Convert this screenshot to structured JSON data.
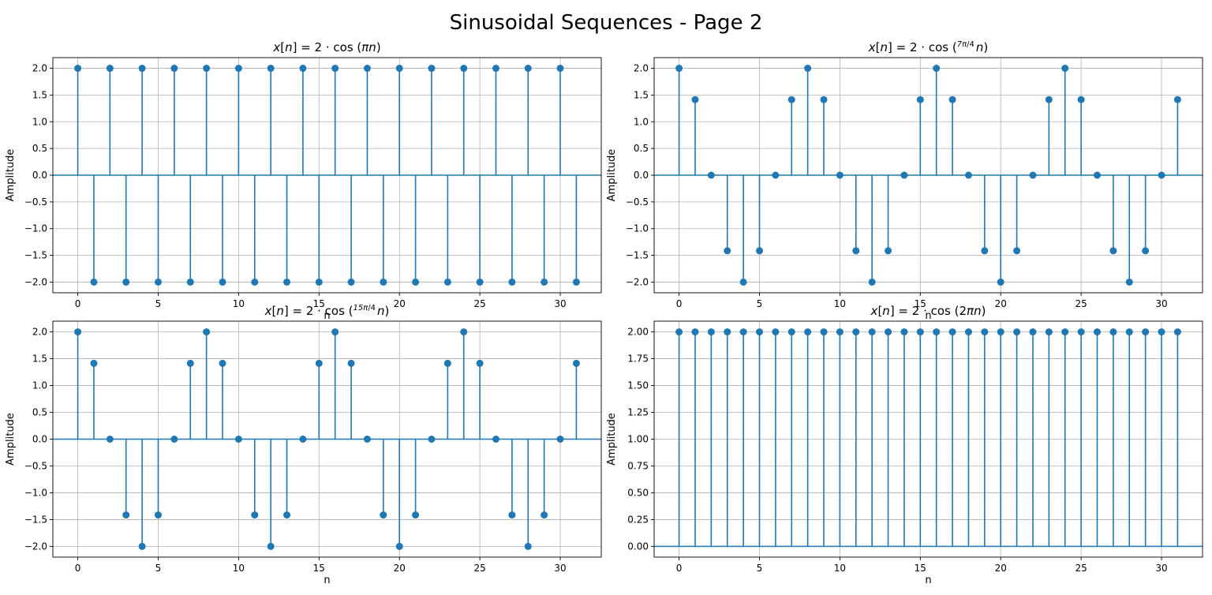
{
  "figure": {
    "title": "Sinusoidal Sequences - Page 2",
    "colors": {
      "stem": "#1f77b4",
      "grid": "#b0b0b0",
      "axes": "#000000",
      "background": "#ffffff"
    }
  },
  "chart_data": [
    {
      "type": "stem",
      "title": "x[n] = 2 · cos (πn)",
      "title_parts": [
        "x",
        "[",
        "n",
        "] = 2 · cos (",
        "π",
        "n",
        ")"
      ],
      "xlabel": "n",
      "ylabel": "Amplitude",
      "xlim": [
        -1.55,
        32.55
      ],
      "ylim": [
        -2.2,
        2.2
      ],
      "xticks": [
        0,
        5,
        10,
        15,
        20,
        25,
        30
      ],
      "yticks": [
        -2.0,
        -1.5,
        -1.0,
        -0.5,
        0.0,
        0.5,
        1.0,
        1.5,
        2.0
      ],
      "ytick_labels": [
        "−2.0",
        "−1.5",
        "−1.0",
        "−0.5",
        "0.0",
        "0.5",
        "1.0",
        "1.5",
        "2.0"
      ],
      "grid": true,
      "baseline": 0,
      "x": [
        0,
        1,
        2,
        3,
        4,
        5,
        6,
        7,
        8,
        9,
        10,
        11,
        12,
        13,
        14,
        15,
        16,
        17,
        18,
        19,
        20,
        21,
        22,
        23,
        24,
        25,
        26,
        27,
        28,
        29,
        30,
        31
      ],
      "values": [
        2,
        -2,
        2,
        -2,
        2,
        -2,
        2,
        -2,
        2,
        -2,
        2,
        -2,
        2,
        -2,
        2,
        -2,
        2,
        -2,
        2,
        -2,
        2,
        -2,
        2,
        -2,
        2,
        -2,
        2,
        -2,
        2,
        -2,
        2,
        -2
      ]
    },
    {
      "type": "stem",
      "title": "x[n] = 2 · cos (7π/4 n)",
      "title_parts": [
        "x",
        "[",
        "n",
        "] = 2 · cos (",
        "7π",
        "4",
        "n",
        ")"
      ],
      "xlabel": "n",
      "ylabel": "Amplitude",
      "xlim": [
        -1.55,
        32.55
      ],
      "ylim": [
        -2.2,
        2.2
      ],
      "xticks": [
        0,
        5,
        10,
        15,
        20,
        25,
        30
      ],
      "yticks": [
        -2.0,
        -1.5,
        -1.0,
        -0.5,
        0.0,
        0.5,
        1.0,
        1.5,
        2.0
      ],
      "ytick_labels": [
        "−2.0",
        "−1.5",
        "−1.0",
        "−0.5",
        "0.0",
        "0.5",
        "1.0",
        "1.5",
        "2.0"
      ],
      "grid": true,
      "baseline": 0,
      "x": [
        0,
        1,
        2,
        3,
        4,
        5,
        6,
        7,
        8,
        9,
        10,
        11,
        12,
        13,
        14,
        15,
        16,
        17,
        18,
        19,
        20,
        21,
        22,
        23,
        24,
        25,
        26,
        27,
        28,
        29,
        30,
        31
      ],
      "values": [
        2,
        1.414,
        0,
        -1.414,
        -2,
        -1.414,
        0,
        1.414,
        2,
        1.414,
        0,
        -1.414,
        -2,
        -1.414,
        0,
        1.414,
        2,
        1.414,
        0,
        -1.414,
        -2,
        -1.414,
        0,
        1.414,
        2,
        1.414,
        0,
        -1.414,
        -2,
        -1.414,
        0,
        1.414
      ]
    },
    {
      "type": "stem",
      "title": "x[n] = 2 · cos (15π/4 n)",
      "title_parts": [
        "x",
        "[",
        "n",
        "] = 2 · cos (",
        "15π",
        "4",
        "n",
        ")"
      ],
      "xlabel": "n",
      "ylabel": "Amplitude",
      "xlim": [
        -1.55,
        32.55
      ],
      "ylim": [
        -2.2,
        2.2
      ],
      "xticks": [
        0,
        5,
        10,
        15,
        20,
        25,
        30
      ],
      "yticks": [
        -2.0,
        -1.5,
        -1.0,
        -0.5,
        0.0,
        0.5,
        1.0,
        1.5,
        2.0
      ],
      "ytick_labels": [
        "−2.0",
        "−1.5",
        "−1.0",
        "−0.5",
        "0.0",
        "0.5",
        "1.0",
        "1.5",
        "2.0"
      ],
      "grid": true,
      "baseline": 0,
      "x": [
        0,
        1,
        2,
        3,
        4,
        5,
        6,
        7,
        8,
        9,
        10,
        11,
        12,
        13,
        14,
        15,
        16,
        17,
        18,
        19,
        20,
        21,
        22,
        23,
        24,
        25,
        26,
        27,
        28,
        29,
        30,
        31
      ],
      "values": [
        2,
        1.414,
        0,
        -1.414,
        -2,
        -1.414,
        0,
        1.414,
        2,
        1.414,
        0,
        -1.414,
        -2,
        -1.414,
        0,
        1.414,
        2,
        1.414,
        0,
        -1.414,
        -2,
        -1.414,
        0,
        1.414,
        2,
        1.414,
        0,
        -1.414,
        -2,
        -1.414,
        0,
        1.414
      ]
    },
    {
      "type": "stem",
      "title": "x[n] = 2 · cos (2πn)",
      "title_parts": [
        "x",
        "[",
        "n",
        "] = 2 · cos (2",
        "π",
        "n",
        ")"
      ],
      "xlabel": "n",
      "ylabel": "Amplitude",
      "xlim": [
        -1.55,
        32.55
      ],
      "ylim": [
        -0.1,
        2.1
      ],
      "xticks": [
        0,
        5,
        10,
        15,
        20,
        25,
        30
      ],
      "yticks": [
        0.0,
        0.25,
        0.5,
        0.75,
        1.0,
        1.25,
        1.5,
        1.75,
        2.0
      ],
      "ytick_labels": [
        "0.00",
        "0.25",
        "0.50",
        "0.75",
        "1.00",
        "1.25",
        "1.50",
        "1.75",
        "2.00"
      ],
      "grid": true,
      "baseline": 0,
      "x": [
        0,
        1,
        2,
        3,
        4,
        5,
        6,
        7,
        8,
        9,
        10,
        11,
        12,
        13,
        14,
        15,
        16,
        17,
        18,
        19,
        20,
        21,
        22,
        23,
        24,
        25,
        26,
        27,
        28,
        29,
        30,
        31
      ],
      "values": [
        2,
        2,
        2,
        2,
        2,
        2,
        2,
        2,
        2,
        2,
        2,
        2,
        2,
        2,
        2,
        2,
        2,
        2,
        2,
        2,
        2,
        2,
        2,
        2,
        2,
        2,
        2,
        2,
        2,
        2,
        2,
        2
      ]
    }
  ]
}
